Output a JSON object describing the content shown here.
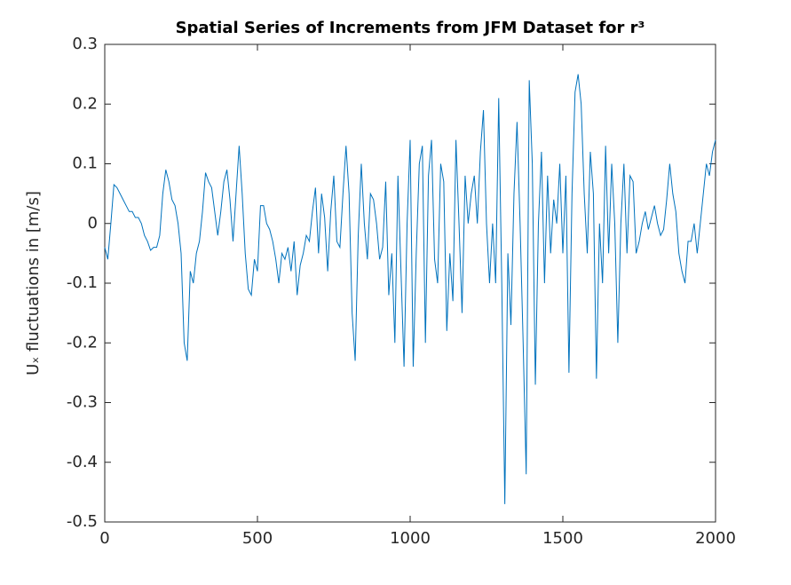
{
  "chart_data": {
    "type": "line",
    "title": "Spatial Series of Increments from JFM Dataset for r³",
    "y_label": "Uₓ fluctuations in [m/s]",
    "x": [
      0,
      10,
      20,
      30,
      40,
      50,
      60,
      70,
      80,
      90,
      100,
      110,
      120,
      130,
      140,
      150,
      160,
      170,
      180,
      190,
      200,
      210,
      220,
      230,
      240,
      250,
      260,
      270,
      280,
      290,
      300,
      310,
      320,
      330,
      340,
      350,
      360,
      370,
      380,
      390,
      400,
      410,
      420,
      430,
      440,
      450,
      460,
      470,
      480,
      490,
      500,
      510,
      520,
      530,
      540,
      550,
      560,
      570,
      580,
      590,
      600,
      610,
      620,
      630,
      640,
      650,
      660,
      670,
      680,
      690,
      700,
      710,
      720,
      730,
      740,
      750,
      760,
      770,
      780,
      790,
      800,
      810,
      820,
      830,
      840,
      850,
      860,
      870,
      880,
      890,
      900,
      910,
      920,
      930,
      940,
      950,
      960,
      970,
      980,
      990,
      1000,
      1010,
      1020,
      1030,
      1040,
      1050,
      1060,
      1070,
      1080,
      1090,
      1100,
      1110,
      1120,
      1130,
      1140,
      1150,
      1160,
      1170,
      1180,
      1190,
      1200,
      1210,
      1220,
      1230,
      1240,
      1250,
      1260,
      1270,
      1280,
      1290,
      1300,
      1310,
      1320,
      1330,
      1340,
      1350,
      1360,
      1370,
      1380,
      1390,
      1400,
      1410,
      1420,
      1430,
      1440,
      1450,
      1460,
      1470,
      1480,
      1490,
      1500,
      1510,
      1520,
      1530,
      1540,
      1550,
      1560,
      1570,
      1580,
      1590,
      1600,
      1610,
      1620,
      1630,
      1640,
      1650,
      1660,
      1670,
      1680,
      1690,
      1700,
      1710,
      1720,
      1730,
      1740,
      1750,
      1760,
      1770,
      1780,
      1790,
      1800,
      1810,
      1820,
      1830,
      1840,
      1850,
      1860,
      1870,
      1880,
      1890,
      1900,
      1910,
      1920,
      1930,
      1940,
      1950,
      1960,
      1970,
      1980,
      1990,
      2000
    ],
    "series": [
      {
        "color": "#0072bd",
        "values": [
          -0.04,
          -0.06,
          0.0,
          0.065,
          0.06,
          0.05,
          0.04,
          0.03,
          0.02,
          0.02,
          0.01,
          0.01,
          0.0,
          -0.02,
          -0.03,
          -0.045,
          -0.04,
          -0.04,
          -0.02,
          0.05,
          0.09,
          0.07,
          0.04,
          0.03,
          0.0,
          -0.05,
          -0.2,
          -0.23,
          -0.08,
          -0.1,
          -0.05,
          -0.03,
          0.02,
          0.085,
          0.07,
          0.06,
          0.02,
          -0.02,
          0.02,
          0.07,
          0.09,
          0.04,
          -0.03,
          0.05,
          0.13,
          0.05,
          -0.05,
          -0.11,
          -0.12,
          -0.06,
          -0.08,
          0.03,
          0.03,
          0.0,
          -0.01,
          -0.03,
          -0.06,
          -0.1,
          -0.05,
          -0.06,
          -0.04,
          -0.08,
          -0.03,
          -0.12,
          -0.07,
          -0.05,
          -0.02,
          -0.03,
          0.02,
          0.06,
          -0.05,
          0.05,
          0.01,
          -0.08,
          0.02,
          0.08,
          -0.03,
          -0.04,
          0.05,
          0.13,
          0.05,
          -0.15,
          -0.23,
          -0.02,
          0.1,
          0.0,
          -0.06,
          0.05,
          0.04,
          0.0,
          -0.06,
          -0.04,
          0.07,
          -0.12,
          -0.05,
          -0.2,
          0.08,
          -0.08,
          -0.24,
          0.0,
          0.14,
          -0.24,
          -0.05,
          0.1,
          0.13,
          -0.2,
          0.08,
          0.14,
          -0.06,
          -0.1,
          0.1,
          0.07,
          -0.18,
          -0.05,
          -0.13,
          0.14,
          0.0,
          -0.15,
          0.08,
          0.0,
          0.05,
          0.08,
          0.0,
          0.12,
          0.19,
          0.0,
          -0.1,
          0.0,
          -0.1,
          0.21,
          -0.1,
          -0.47,
          -0.05,
          -0.17,
          0.05,
          0.17,
          0.0,
          -0.2,
          -0.42,
          0.24,
          0.1,
          -0.27,
          0.0,
          0.12,
          -0.1,
          0.08,
          -0.05,
          0.04,
          0.0,
          0.1,
          -0.05,
          0.08,
          -0.25,
          0.05,
          0.22,
          0.25,
          0.2,
          0.05,
          -0.05,
          0.12,
          0.05,
          -0.26,
          0.0,
          -0.1,
          0.13,
          -0.05,
          0.1,
          0.0,
          -0.2,
          0.0,
          0.1,
          -0.05,
          0.08,
          0.07,
          -0.05,
          -0.03,
          0.0,
          0.02,
          -0.01,
          0.01,
          0.03,
          0.0,
          -0.02,
          -0.01,
          0.04,
          0.1,
          0.05,
          0.02,
          -0.05,
          -0.08,
          -0.1,
          -0.03,
          -0.03,
          0.0,
          -0.05,
          0.0,
          0.05,
          0.1,
          0.08,
          0.12,
          0.14
        ]
      }
    ],
    "xlim": [
      0,
      2000
    ],
    "xticks": [
      0,
      500,
      1000,
      1500,
      2000
    ],
    "ylim": [
      -0.5,
      0.3
    ],
    "yticks": [
      -0.5,
      -0.4,
      -0.3,
      -0.2,
      -0.1,
      0,
      0.1,
      0.2,
      0.3
    ]
  }
}
